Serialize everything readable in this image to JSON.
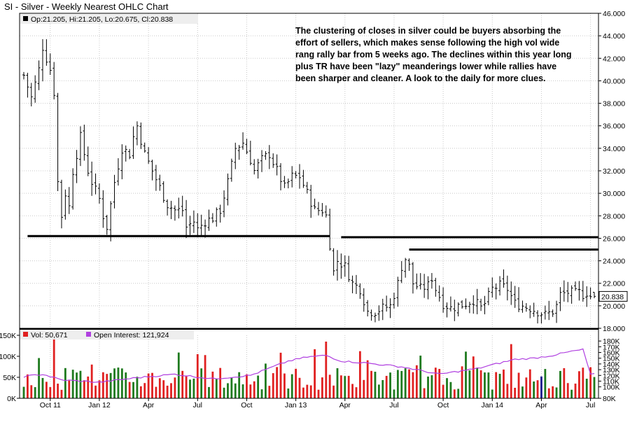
{
  "title": "SI - Silver - Weekly Nearest OHLC Chart",
  "price_legend": "Op:21.205, Hi:21.205, Lo:20.675, Cl:20.838",
  "last_price_label": "20.838",
  "annotation": "The clustering of closes in silver could be buyers absorbing the effort of sellers, which makes sense following the high vol wide rang rally bar from 5 weeks ago.  The declines within this year long plus TR have been \"lazy\" meanderings lower while rallies have been sharper and cleaner.  A look to the daily for more clues.",
  "volume_legend": "Vol: 50,671",
  "oi_legend": "Open Interest: 121,924",
  "colors": {
    "up_volume": "#1e7a1e",
    "down_volume": "#e02020",
    "last_volume": "#1a1a8c",
    "open_interest": "#b040e0",
    "price_bar": "#000000",
    "grid": "#c8c8c8",
    "legend_bg": "#eeeeee"
  },
  "chart_data": [
    {
      "type": "ohlc",
      "title": "SI - Silver - Weekly Nearest OHLC Chart",
      "x_tick_labels": [
        "Oct 11",
        "Jan 12",
        "Apr",
        "Jul",
        "Oct",
        "Jan 13",
        "Apr",
        "Jul",
        "Oct",
        "Jan 14",
        "Apr",
        "Jul"
      ],
      "y_tick_labels": [
        "18.000",
        "20.000",
        "22.000",
        "24.000",
        "26.000",
        "28.000",
        "30.000",
        "32.000",
        "34.000",
        "36.000",
        "38.000",
        "40.000",
        "42.000",
        "44.000",
        "46.000"
      ],
      "ylim": [
        18,
        46
      ],
      "grid": true,
      "weeks": 152,
      "close_anchors": [
        [
          0,
          40.5
        ],
        [
          2,
          38.5
        ],
        [
          4,
          41
        ],
        [
          5,
          43
        ],
        [
          7,
          41
        ],
        [
          8,
          39
        ],
        [
          9,
          31
        ],
        [
          10,
          28
        ],
        [
          11,
          30
        ],
        [
          12,
          28.8
        ],
        [
          13,
          32
        ],
        [
          15,
          35
        ],
        [
          17,
          32
        ],
        [
          18,
          31
        ],
        [
          20,
          29.5
        ],
        [
          21,
          28
        ],
        [
          22,
          27
        ],
        [
          24,
          31
        ],
        [
          26,
          34
        ],
        [
          28,
          33.5
        ],
        [
          29,
          35
        ],
        [
          30,
          36
        ],
        [
          32,
          33.5
        ],
        [
          34,
          32
        ],
        [
          36,
          30.5
        ],
        [
          38,
          29
        ],
        [
          40,
          28.5
        ],
        [
          42,
          28.5
        ],
        [
          43,
          27
        ],
        [
          45,
          27.5
        ],
        [
          46,
          26.8
        ],
        [
          48,
          27.5
        ],
        [
          50,
          27.8
        ],
        [
          52,
          28.5
        ],
        [
          54,
          31
        ],
        [
          56,
          34
        ],
        [
          58,
          34.5
        ],
        [
          60,
          33
        ],
        [
          61,
          32
        ],
        [
          63,
          33
        ],
        [
          65,
          33.5
        ],
        [
          67,
          32
        ],
        [
          69,
          30.5
        ],
        [
          71,
          31.5
        ],
        [
          73,
          31.5
        ],
        [
          75,
          30
        ],
        [
          77,
          28.5
        ],
        [
          79,
          28.5
        ],
        [
          80,
          28
        ],
        [
          81,
          25.5
        ],
        [
          82,
          23
        ],
        [
          83,
          24
        ],
        [
          85,
          23.5
        ],
        [
          87,
          22
        ],
        [
          89,
          21.5
        ],
        [
          91,
          19.5
        ],
        [
          93,
          19.5
        ],
        [
          95,
          19.8
        ],
        [
          97,
          20
        ],
        [
          99,
          22
        ],
        [
          100,
          23.5
        ],
        [
          101,
          24.2
        ],
        [
          102,
          23.5
        ],
        [
          103,
          22
        ],
        [
          105,
          21.5
        ],
        [
          107,
          21.8
        ],
        [
          108,
          22.5
        ],
        [
          109,
          21.5
        ],
        [
          111,
          20.2
        ],
        [
          113,
          19.8
        ],
        [
          115,
          20
        ],
        [
          117,
          20.2
        ],
        [
          119,
          20.5
        ],
        [
          121,
          19.8
        ],
        [
          122,
          20.2
        ],
        [
          124,
          21.5
        ],
        [
          126,
          21.8
        ],
        [
          128,
          21.5
        ],
        [
          130,
          20.2
        ],
        [
          132,
          20
        ],
        [
          134,
          19.8
        ],
        [
          136,
          19.5
        ],
        [
          138,
          19.2
        ],
        [
          140,
          19.5
        ],
        [
          141,
          20
        ],
        [
          142,
          21
        ],
        [
          144,
          21.2
        ],
        [
          146,
          21.1
        ],
        [
          147,
          21.2
        ],
        [
          148,
          21
        ],
        [
          149,
          21.2
        ],
        [
          150,
          20.84
        ]
      ],
      "last_bar": {
        "open": 21.205,
        "high": 21.205,
        "low": 20.675,
        "close": 20.838
      },
      "support_lines": [
        {
          "price": 26.2,
          "from_week": 1,
          "to_week": 81
        },
        {
          "price": 26.1,
          "from_week": 84,
          "to_week": 152
        },
        {
          "price": 25.0,
          "from_week": 102,
          "to_week": 152
        }
      ]
    },
    {
      "type": "bar+line",
      "title": "Volume / Open Interest",
      "volume_tick_labels": [
        "0K",
        "50K",
        "100K",
        "150K"
      ],
      "volume_ylim": [
        0,
        150
      ],
      "oi_tick_labels": [
        "80K",
        "100K",
        "110K",
        "120K",
        "130K",
        "140K",
        "150K",
        "160K",
        "170K",
        "180K"
      ],
      "oi_ylim": [
        80,
        190
      ],
      "last_volume": 50.671,
      "last_open_interest": 121.924,
      "oi_anchors": [
        [
          0,
          118
        ],
        [
          5,
          122
        ],
        [
          10,
          112
        ],
        [
          20,
          108
        ],
        [
          30,
          116
        ],
        [
          40,
          122
        ],
        [
          50,
          114
        ],
        [
          60,
          120
        ],
        [
          70,
          145
        ],
        [
          75,
          152
        ],
        [
          80,
          155
        ],
        [
          84,
          145
        ],
        [
          90,
          142
        ],
        [
          100,
          135
        ],
        [
          110,
          122
        ],
        [
          120,
          132
        ],
        [
          130,
          148
        ],
        [
          135,
          150
        ],
        [
          140,
          155
        ],
        [
          145,
          162
        ],
        [
          148,
          165
        ],
        [
          150,
          122
        ]
      ]
    }
  ]
}
